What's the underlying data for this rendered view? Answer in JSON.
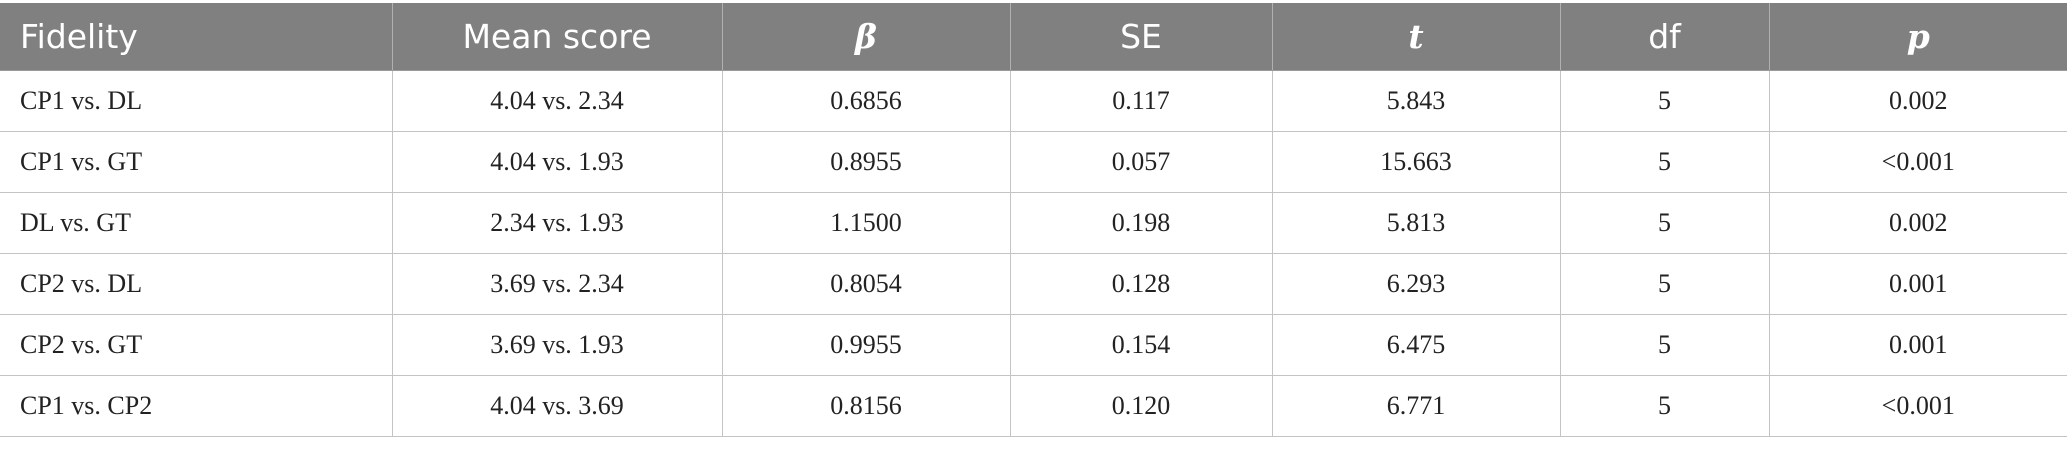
{
  "table": {
    "headers": [
      "Fidelity",
      "Mean score",
      "β",
      "SE",
      "t",
      "df",
      "p"
    ],
    "rows": [
      [
        "CP1 vs. DL",
        "4.04 vs. 2.34",
        "0.6856",
        "0.117",
        "5.843",
        "5",
        "0.002"
      ],
      [
        "CP1 vs. GT",
        "4.04 vs. 1.93",
        "0.8955",
        "0.057",
        "15.663",
        "5",
        "<0.001"
      ],
      [
        "DL vs. GT",
        "2.34 vs. 1.93",
        "1.1500",
        "0.198",
        "5.813",
        "5",
        "0.002"
      ],
      [
        "CP2 vs. DL",
        "3.69 vs. 2.34",
        "0.8054",
        "0.128",
        "6.293",
        "5",
        "0.001"
      ],
      [
        "CP2 vs. GT",
        "3.69 vs. 1.93",
        "0.9955",
        "0.154",
        "6.475",
        "5",
        "0.001"
      ],
      [
        "CP1 vs. CP2",
        "4.04 vs. 3.69",
        "0.8156",
        "0.120",
        "6.771",
        "5",
        "<0.001"
      ]
    ]
  },
  "colors": {
    "header_bg": "#808080",
    "header_text": "#ffffff",
    "grid": "#c4c4c4"
  }
}
